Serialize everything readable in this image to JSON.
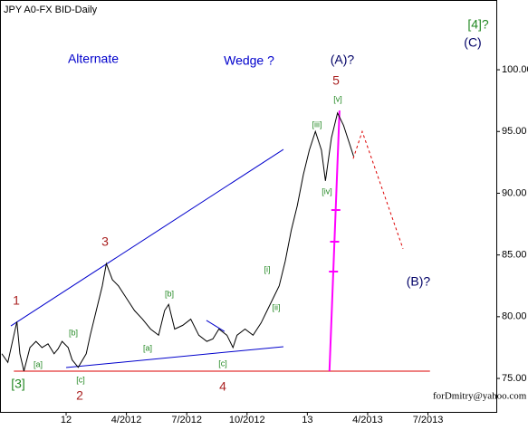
{
  "chart_data": {
    "type": "line",
    "title": "JPY A0-FX BID-Daily",
    "watermark": "forDmitry@yahoo.com",
    "xlim": [
      -3.29,
      21.4
    ],
    "ylim": [
      72.29,
      105.65
    ],
    "xticks": [
      {
        "value": 0,
        "label": "12"
      },
      {
        "value": 3,
        "label": "4/2012"
      },
      {
        "value": 6,
        "label": "7/2012"
      },
      {
        "value": 9,
        "label": "10/2012"
      },
      {
        "value": 12,
        "label": "13"
      },
      {
        "value": 15,
        "label": "4/2013"
      },
      {
        "value": 18,
        "label": "7/2013"
      }
    ],
    "yticks": [
      {
        "value": 75,
        "label": "75.00"
      },
      {
        "value": 80,
        "label": "80.00"
      },
      {
        "value": 85,
        "label": "85.00"
      },
      {
        "value": 90,
        "label": "90.00"
      },
      {
        "value": 95,
        "label": "95.00"
      },
      {
        "value": 100,
        "label": "100.00"
      }
    ],
    "series": [
      {
        "name": "JPY",
        "color": "#000000",
        "x": [
          -3.2,
          -2.9,
          -2.6,
          -2.45,
          -2.3,
          -2.1,
          -1.8,
          -1.5,
          -1.2,
          -0.9,
          -0.6,
          -0.4,
          -0.2,
          0.1,
          0.3,
          0.6,
          1.0,
          1.2,
          1.5,
          1.8,
          2.0,
          2.3,
          2.6,
          3.0,
          3.4,
          3.8,
          4.2,
          4.6,
          4.9,
          5.1,
          5.4,
          5.8,
          6.2,
          6.6,
          7.0,
          7.3,
          7.6,
          8.0,
          8.3,
          8.5,
          8.9,
          9.3,
          9.7,
          10.0,
          10.3,
          10.6,
          10.9,
          11.2,
          11.5,
          11.8,
          12.1,
          12.4,
          12.7,
          12.9,
          13.2,
          13.5,
          13.8,
          14.1,
          14.3
        ],
        "values": [
          77.0,
          76.3,
          78.5,
          79.6,
          77.0,
          75.6,
          77.5,
          78.0,
          77.5,
          77.8,
          77.0,
          77.4,
          78.0,
          77.5,
          76.5,
          75.9,
          77.0,
          78.5,
          80.5,
          82.5,
          84.3,
          83.0,
          82.5,
          81.5,
          80.5,
          79.8,
          79.0,
          78.5,
          80.5,
          81.0,
          79.0,
          79.3,
          79.8,
          78.5,
          78.0,
          78.2,
          79.0,
          78.5,
          77.5,
          78.5,
          79.0,
          78.5,
          79.5,
          80.5,
          81.5,
          82.5,
          84.5,
          87.0,
          89.0,
          91.5,
          93.5,
          95.0,
          93.5,
          91.0,
          94.5,
          96.5,
          95.5,
          94.0,
          93.0
        ]
      }
    ],
    "lines": [
      {
        "color": "#0000cc",
        "x": [
          -2.75,
          10.81
        ],
        "values": [
          79.25,
          93.55
        ]
      },
      {
        "color": "#0000cc",
        "x": [
          0,
          10.81
        ],
        "values": [
          75.88,
          77.57
        ]
      },
      {
        "color": "#0000cc",
        "x": [
          6.98,
          7.88
        ],
        "values": [
          79.7,
          78.8
        ]
      },
      {
        "color": "#dd0000",
        "x": [
          -2.6,
          18.1
        ],
        "values": [
          75.59,
          75.59
        ]
      },
      {
        "color": "#ff00ff",
        "x": [
          13.1,
          13.6
        ],
        "values": [
          75.6,
          96.7
        ]
      }
    ],
    "projection": {
      "color": "#dd0000",
      "x": [
        14.28,
        14.73,
        16.76
      ],
      "values": [
        92.8,
        95.0,
        85.5
      ]
    },
    "annotations": [
      {
        "text": "Alternate",
        "color": "#0000cc"
      },
      {
        "text": "Wedge ?",
        "color": "#0000cc"
      },
      {
        "text": "(A)?",
        "color": "#000066"
      },
      {
        "text": "5",
        "color": "#aa2222"
      },
      {
        "text": "[4]?",
        "color": "#228822"
      },
      {
        "text": "(C)",
        "color": "#000066"
      },
      {
        "text": "[v]",
        "color": "#228822"
      },
      {
        "text": "[iii]",
        "color": "#228822"
      },
      {
        "text": "[iv]",
        "color": "#228822"
      },
      {
        "text": "3",
        "color": "#aa2222"
      },
      {
        "text": "[i]",
        "color": "#228822"
      },
      {
        "text": "[ii]",
        "color": "#228822"
      },
      {
        "text": "(B)?",
        "color": "#000066"
      },
      {
        "text": "1",
        "color": "#aa2222"
      },
      {
        "text": "[b]",
        "color": "#228822"
      },
      {
        "text": "[b]",
        "color": "#228822"
      },
      {
        "text": "[a]",
        "color": "#228822"
      },
      {
        "text": "[a]",
        "color": "#228822"
      },
      {
        "text": "[c]",
        "color": "#228822"
      },
      {
        "text": "[c]",
        "color": "#228822"
      },
      {
        "text": "[3]",
        "color": "#228822"
      },
      {
        "text": "4",
        "color": "#aa2222"
      },
      {
        "text": "2",
        "color": "#aa2222"
      }
    ]
  }
}
